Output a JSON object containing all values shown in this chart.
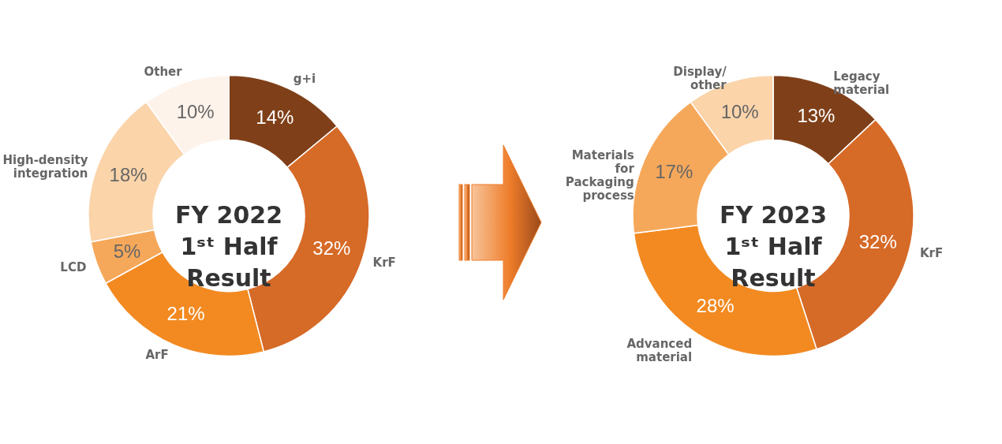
{
  "chart_data": [
    {
      "type": "donut",
      "title": "FY 2022\n1ˢᵗ Half\nResult",
      "categories": [
        "g+i",
        "KrF",
        "ArF",
        "LCD",
        "High-density integration",
        "Other"
      ],
      "values": [
        14,
        32,
        21,
        5,
        18,
        10
      ],
      "value_labels": [
        "14%",
        "32%",
        "21%",
        "5%",
        "18%",
        "10%"
      ],
      "colors": [
        "#7f4019",
        "#d66a27",
        "#f28a21",
        "#f6a85a",
        "#fbd4aa",
        "#fef3eb"
      ]
    },
    {
      "type": "donut",
      "title": "FY 2023\n1ˢᵗ Half\nResult",
      "categories": [
        "Legacy material",
        "KrF",
        "Advanced material",
        "Materials for Packaging process",
        "Display/ other"
      ],
      "values": [
        13,
        32,
        28,
        17,
        10
      ],
      "value_labels": [
        "13%",
        "32%",
        "28%",
        "17%",
        "10%"
      ],
      "colors": [
        "#7f4019",
        "#d66a27",
        "#f28a21",
        "#f6a85a",
        "#fbd4aa"
      ]
    }
  ]
}
